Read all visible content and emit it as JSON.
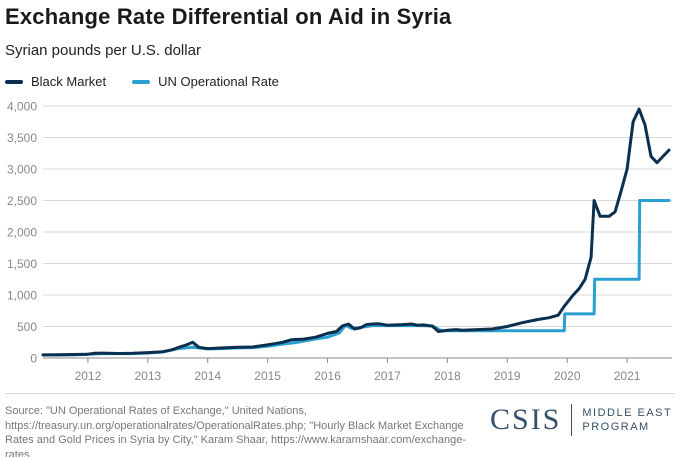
{
  "header": {
    "title": "Exchange Rate Differential on Aid in Syria",
    "subtitle": "Syrian pounds per U.S. dollar"
  },
  "legend": {
    "items": [
      {
        "label": "Black Market",
        "color": "#0b2f4e"
      },
      {
        "label": "UN Operational Rate",
        "color": "#2b9fd1"
      }
    ]
  },
  "chart_data": {
    "type": "line",
    "title": "Exchange Rate Differential on Aid in Syria",
    "subtitle": "Syrian pounds per U.S. dollar",
    "xlabel": "",
    "ylabel": "",
    "xlim": [
      2011.25,
      2021.75
    ],
    "ylim": [
      0,
      4000
    ],
    "x_ticks": [
      2012,
      2013,
      2014,
      2015,
      2016,
      2017,
      2018,
      2019,
      2020,
      2021
    ],
    "x_tick_labels": [
      "2012",
      "2013",
      "2014",
      "2015",
      "2016",
      "2017",
      "2018",
      "2019",
      "2020",
      "2021"
    ],
    "y_ticks": [
      0,
      500,
      1000,
      1500,
      2000,
      2500,
      3000,
      3500,
      4000
    ],
    "y_tick_labels": [
      "0",
      "500",
      "1,000",
      "1,500",
      "2,000",
      "2,500",
      "3,000",
      "3,500",
      "4,000"
    ],
    "grid": "horizontal",
    "legend_position": "top-left",
    "series": [
      {
        "name": "Black Market",
        "color": "#0b2f4e",
        "points": [
          [
            2011.25,
            50
          ],
          [
            2011.5,
            52
          ],
          [
            2011.75,
            55
          ],
          [
            2012.0,
            60
          ],
          [
            2012.1,
            75
          ],
          [
            2012.25,
            78
          ],
          [
            2012.5,
            72
          ],
          [
            2012.75,
            75
          ],
          [
            2013.0,
            85
          ],
          [
            2013.25,
            100
          ],
          [
            2013.4,
            130
          ],
          [
            2013.55,
            180
          ],
          [
            2013.65,
            210
          ],
          [
            2013.75,
            250
          ],
          [
            2013.85,
            170
          ],
          [
            2014.0,
            150
          ],
          [
            2014.25,
            160
          ],
          [
            2014.5,
            170
          ],
          [
            2014.75,
            175
          ],
          [
            2015.0,
            210
          ],
          [
            2015.25,
            250
          ],
          [
            2015.4,
            290
          ],
          [
            2015.6,
            300
          ],
          [
            2015.8,
            330
          ],
          [
            2016.0,
            390
          ],
          [
            2016.15,
            420
          ],
          [
            2016.25,
            510
          ],
          [
            2016.35,
            540
          ],
          [
            2016.45,
            460
          ],
          [
            2016.55,
            480
          ],
          [
            2016.65,
            530
          ],
          [
            2016.75,
            540
          ],
          [
            2016.85,
            545
          ],
          [
            2017.0,
            520
          ],
          [
            2017.25,
            530
          ],
          [
            2017.4,
            540
          ],
          [
            2017.5,
            520
          ],
          [
            2017.6,
            525
          ],
          [
            2017.75,
            505
          ],
          [
            2017.85,
            420
          ],
          [
            2018.0,
            440
          ],
          [
            2018.15,
            450
          ],
          [
            2018.25,
            440
          ],
          [
            2018.5,
            450
          ],
          [
            2018.75,
            460
          ],
          [
            2019.0,
            500
          ],
          [
            2019.25,
            560
          ],
          [
            2019.5,
            610
          ],
          [
            2019.7,
            640
          ],
          [
            2019.85,
            680
          ],
          [
            2019.95,
            820
          ],
          [
            2020.1,
            1000
          ],
          [
            2020.2,
            1100
          ],
          [
            2020.3,
            1250
          ],
          [
            2020.4,
            1600
          ],
          [
            2020.45,
            2500
          ],
          [
            2020.55,
            2250
          ],
          [
            2020.7,
            2250
          ],
          [
            2020.8,
            2320
          ],
          [
            2020.9,
            2650
          ],
          [
            2021.0,
            3000
          ],
          [
            2021.1,
            3750
          ],
          [
            2021.2,
            3950
          ],
          [
            2021.3,
            3700
          ],
          [
            2021.4,
            3200
          ],
          [
            2021.5,
            3100
          ],
          [
            2021.6,
            3200
          ],
          [
            2021.7,
            3300
          ]
        ]
      },
      {
        "name": "UN Operational Rate",
        "color": "#2b9fd1",
        "points": [
          [
            2011.25,
            47
          ],
          [
            2011.5,
            48
          ],
          [
            2011.75,
            50
          ],
          [
            2012.0,
            60
          ],
          [
            2012.25,
            70
          ],
          [
            2012.5,
            70
          ],
          [
            2012.75,
            70
          ],
          [
            2013.0,
            80
          ],
          [
            2013.25,
            95
          ],
          [
            2013.5,
            150
          ],
          [
            2013.75,
            170
          ],
          [
            2014.0,
            145
          ],
          [
            2014.25,
            150
          ],
          [
            2014.5,
            160
          ],
          [
            2014.75,
            165
          ],
          [
            2015.0,
            185
          ],
          [
            2015.25,
            220
          ],
          [
            2015.5,
            250
          ],
          [
            2015.75,
            295
          ],
          [
            2016.0,
            330
          ],
          [
            2016.2,
            400
          ],
          [
            2016.3,
            520
          ],
          [
            2016.4,
            470
          ],
          [
            2016.5,
            480
          ],
          [
            2016.75,
            515
          ],
          [
            2017.0,
            515
          ],
          [
            2017.5,
            515
          ],
          [
            2017.75,
            510
          ],
          [
            2017.9,
            434
          ],
          [
            2018.5,
            434
          ],
          [
            2019.0,
            434
          ],
          [
            2019.5,
            434
          ],
          [
            2019.95,
            434
          ],
          [
            2019.96,
            700
          ],
          [
            2020.45,
            700
          ],
          [
            2020.46,
            1250
          ],
          [
            2021.2,
            1250
          ],
          [
            2021.21,
            2500
          ],
          [
            2021.7,
            2500
          ]
        ]
      }
    ]
  },
  "footer": {
    "source": "Source: \"UN Operational Rates of Exchange,\" United Nations, https://treasury.un.org/operationalrates/OperationalRates.php; \"Hourly Black Market Exchange Rates and Gold Prices in Syria by City,\" Karam Shaar, https://www.karamshaar.com/exchange-rates.",
    "logo_word": "CSIS",
    "logo_program": "MIDDLE EAST\nPROGRAM"
  }
}
